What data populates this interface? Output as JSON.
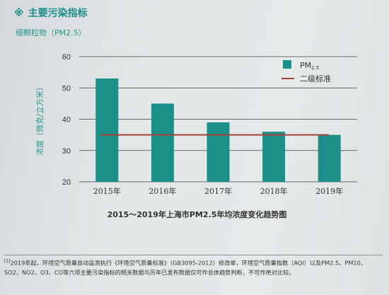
{
  "section": {
    "mark": "※",
    "title": "主要污染指标"
  },
  "subtitle": "细颗粒物（PM2.5）",
  "chart_data": {
    "type": "bar",
    "categories": [
      "2015年",
      "2016年",
      "2017年",
      "2018年",
      "2019年"
    ],
    "series": [
      {
        "name": "PM2.5",
        "values": [
          53,
          45,
          39,
          36,
          35
        ]
      }
    ],
    "reference_line": {
      "name": "二级标准",
      "value": 35
    },
    "legend": [
      {
        "label": "PM",
        "sub": "2.5",
        "color": "#1c8f88",
        "kind": "bar"
      },
      {
        "label": "二级标准",
        "color": "#a3423a",
        "kind": "line"
      }
    ],
    "title": "2015～2019年上海市PM2.5年均浓度变化趋势图",
    "ylabel": "浓度（微克/立方米）",
    "ylim": [
      20,
      60
    ],
    "yticks": [
      20,
      30,
      40,
      50,
      60
    ],
    "grid": true,
    "legend_position": "top-right",
    "colors": {
      "bar": "#1c8f88",
      "line": "#a3423a"
    }
  },
  "footnote": {
    "marker": "[1]",
    "text": "2019年起，环境空气质量自动监测执行《环境空气质量标准》（GB3095-2012）修改单，环境空气质量指数（AQI）以及PM2.5、PM10、SO2、NO2、O3、CO等六项主要污染指标的相关数据与历年已发布数据仅可作总体趋势判断，不可作绝对比较。"
  }
}
